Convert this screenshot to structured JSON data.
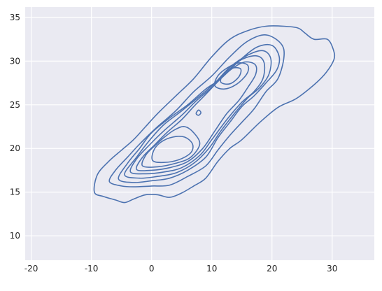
{
  "chart_data": {
    "type": "kde-contour",
    "title": "",
    "xlabel": "",
    "ylabel": "",
    "xlim": [
      -21,
      37
    ],
    "ylim": [
      7.2,
      36.2
    ],
    "x_ticks": [
      -20,
      -10,
      0,
      10,
      20,
      30
    ],
    "y_ticks": [
      10,
      15,
      20,
      25,
      30,
      35
    ],
    "grid": true,
    "colors": {
      "background": "#EAEAF2",
      "grid": "#FFFFFF",
      "line": "#4C72B0",
      "tick_text": "#262626"
    },
    "contours": [
      {
        "level": 1,
        "points": [
          [
            -9.5,
            15.0
          ],
          [
            -8.0,
            14.5
          ],
          [
            -6.0,
            14.1
          ],
          [
            -4.5,
            13.8
          ],
          [
            -3.0,
            14.2
          ],
          [
            -1.0,
            14.7
          ],
          [
            1.0,
            14.7
          ],
          [
            3.0,
            14.4
          ],
          [
            5.0,
            14.9
          ],
          [
            7.0,
            15.7
          ],
          [
            9.0,
            16.6
          ],
          [
            11.0,
            18.5
          ],
          [
            13.0,
            20.0
          ],
          [
            15.0,
            21.0
          ],
          [
            18.0,
            23.0
          ],
          [
            21.0,
            24.7
          ],
          [
            24.0,
            25.7
          ],
          [
            27.0,
            27.3
          ],
          [
            29.0,
            28.7
          ],
          [
            30.3,
            30.2
          ],
          [
            30.2,
            31.3
          ],
          [
            29.2,
            32.5
          ],
          [
            27.0,
            32.5
          ],
          [
            25.5,
            33.2
          ],
          [
            24.3,
            33.8
          ],
          [
            22.0,
            34.0
          ],
          [
            19.0,
            34.0
          ],
          [
            16.0,
            33.5
          ],
          [
            13.0,
            32.5
          ],
          [
            10.0,
            30.5
          ],
          [
            7.0,
            28.0
          ],
          [
            4.0,
            26.0
          ],
          [
            1.0,
            24.0
          ],
          [
            -1.0,
            22.5
          ],
          [
            -3.0,
            21.0
          ],
          [
            -5.0,
            19.8
          ],
          [
            -7.0,
            18.6
          ],
          [
            -9.0,
            17.0
          ],
          [
            -9.5,
            15.0
          ]
        ]
      },
      {
        "level": 2,
        "points": [
          [
            -7.0,
            16.2
          ],
          [
            -5.0,
            15.7
          ],
          [
            -3.0,
            15.6
          ],
          [
            0.0,
            15.7
          ],
          [
            3.0,
            15.8
          ],
          [
            6.0,
            16.8
          ],
          [
            9.0,
            18.0
          ],
          [
            11.0,
            19.8
          ],
          [
            13.0,
            21.5
          ],
          [
            15.0,
            23.0
          ],
          [
            17.0,
            24.5
          ],
          [
            19.0,
            26.5
          ],
          [
            21.0,
            28.0
          ],
          [
            22.0,
            30.5
          ],
          [
            21.5,
            32.0
          ],
          [
            19.0,
            33.0
          ],
          [
            16.0,
            32.3
          ],
          [
            13.0,
            30.5
          ],
          [
            10.0,
            28.3
          ],
          [
            7.0,
            26.5
          ],
          [
            4.0,
            24.3
          ],
          [
            1.0,
            22.5
          ],
          [
            -2.0,
            20.5
          ],
          [
            -4.0,
            19.0
          ],
          [
            -6.0,
            17.5
          ],
          [
            -7.0,
            16.2
          ]
        ]
      },
      {
        "level": 3,
        "points": [
          [
            -5.5,
            16.5
          ],
          [
            -3.0,
            16.1
          ],
          [
            0.0,
            16.3
          ],
          [
            3.0,
            16.6
          ],
          [
            6.0,
            17.5
          ],
          [
            9.0,
            19.0
          ],
          [
            11.0,
            21.2
          ],
          [
            13.0,
            23.0
          ],
          [
            15.0,
            24.8
          ],
          [
            17.0,
            26.0
          ],
          [
            19.0,
            27.5
          ],
          [
            20.8,
            29.0
          ],
          [
            21.2,
            30.5
          ],
          [
            20.0,
            31.8
          ],
          [
            17.5,
            31.6
          ],
          [
            14.5,
            30.0
          ],
          [
            11.5,
            28.0
          ],
          [
            9.0,
            26.8
          ],
          [
            6.0,
            25.0
          ],
          [
            3.0,
            23.5
          ],
          [
            0.0,
            21.8
          ],
          [
            -2.0,
            20.0
          ],
          [
            -4.0,
            18.3
          ],
          [
            -5.5,
            16.5
          ]
        ]
      },
      {
        "level": 4,
        "points": [
          [
            -4.5,
            17.0
          ],
          [
            -2.0,
            16.6
          ],
          [
            1.0,
            16.8
          ],
          [
            4.0,
            17.2
          ],
          [
            7.0,
            18.3
          ],
          [
            9.5,
            20.0
          ],
          [
            11.5,
            22.0
          ],
          [
            14.0,
            24.2
          ],
          [
            16.0,
            25.8
          ],
          [
            18.0,
            27.0
          ],
          [
            19.5,
            28.5
          ],
          [
            19.8,
            30.3
          ],
          [
            18.5,
            31.2
          ],
          [
            16.0,
            30.7
          ],
          [
            13.0,
            29.3
          ],
          [
            10.5,
            27.5
          ],
          [
            8.0,
            26.0
          ],
          [
            5.0,
            24.3
          ],
          [
            2.0,
            22.7
          ],
          [
            -0.5,
            20.8
          ],
          [
            -2.5,
            19.0
          ],
          [
            -4.5,
            17.0
          ]
        ]
      },
      {
        "level": 5,
        "points": [
          [
            -3.5,
            17.3
          ],
          [
            -1.0,
            17.1
          ],
          [
            2.0,
            17.3
          ],
          [
            5.0,
            17.8
          ],
          [
            8.0,
            19.2
          ],
          [
            10.0,
            21.0
          ],
          [
            12.5,
            23.3
          ],
          [
            15.0,
            25.3
          ],
          [
            17.0,
            26.5
          ],
          [
            18.5,
            28.0
          ],
          [
            18.7,
            29.8
          ],
          [
            17.5,
            30.6
          ],
          [
            15.0,
            30.2
          ],
          [
            12.5,
            28.8
          ],
          [
            10.0,
            27.0
          ],
          [
            7.5,
            25.5
          ],
          [
            5.0,
            23.8
          ],
          [
            2.0,
            22.0
          ],
          [
            -0.5,
            20.3
          ],
          [
            -2.5,
            18.8
          ],
          [
            -3.5,
            17.3
          ]
        ]
      },
      {
        "level": 6,
        "points": [
          [
            -2.5,
            17.6
          ],
          [
            0.0,
            17.5
          ],
          [
            3.0,
            17.8
          ],
          [
            6.0,
            18.5
          ],
          [
            8.5,
            20.0
          ],
          [
            10.5,
            22.0
          ],
          [
            12.5,
            24.0
          ],
          [
            14.5,
            25.5
          ],
          [
            16.0,
            27.0
          ],
          [
            17.3,
            28.5
          ],
          [
            17.2,
            29.6
          ],
          [
            15.5,
            29.9
          ],
          [
            13.5,
            29.2
          ],
          [
            11.5,
            28.0
          ],
          [
            9.0,
            26.2
          ],
          [
            7.0,
            24.8
          ],
          [
            5.0,
            23.3
          ],
          [
            2.5,
            21.8
          ],
          [
            0.5,
            20.4
          ],
          [
            -1.5,
            19.0
          ],
          [
            -2.5,
            17.6
          ]
        ]
      },
      {
        "level": 7,
        "points": [
          [
            -1.5,
            18.0
          ],
          [
            1.0,
            17.9
          ],
          [
            4.0,
            18.3
          ],
          [
            6.5,
            19.0
          ],
          [
            8.0,
            20.5
          ],
          [
            7.0,
            21.8
          ],
          [
            5.5,
            22.5
          ],
          [
            4.0,
            22.2
          ],
          [
            2.5,
            21.5
          ],
          [
            0.5,
            20.3
          ],
          [
            -1.0,
            19.2
          ],
          [
            -1.5,
            18.0
          ]
        ]
      },
      {
        "level": 8,
        "points": [
          [
            0.2,
            18.6
          ],
          [
            2.0,
            18.4
          ],
          [
            4.5,
            18.7
          ],
          [
            6.5,
            19.5
          ],
          [
            6.8,
            20.5
          ],
          [
            5.5,
            21.3
          ],
          [
            3.5,
            21.3
          ],
          [
            1.5,
            20.7
          ],
          [
            0.3,
            19.7
          ],
          [
            0.2,
            18.6
          ]
        ]
      },
      {
        "level": 7,
        "points": [
          [
            10.5,
            27.2
          ],
          [
            12.0,
            26.8
          ],
          [
            14.0,
            27.3
          ],
          [
            15.8,
            28.5
          ],
          [
            16.0,
            29.5
          ],
          [
            14.5,
            29.8
          ],
          [
            12.5,
            29.2
          ],
          [
            11.0,
            28.3
          ],
          [
            10.5,
            27.2
          ]
        ]
      },
      {
        "level": 8,
        "points": [
          [
            11.5,
            27.6
          ],
          [
            13.0,
            27.4
          ],
          [
            14.5,
            28.2
          ],
          [
            14.8,
            29.1
          ],
          [
            13.5,
            29.2
          ],
          [
            12.0,
            28.6
          ],
          [
            11.5,
            27.6
          ]
        ]
      },
      {
        "level": 9,
        "points": [
          [
            7.4,
            24.0
          ],
          [
            7.8,
            23.8
          ],
          [
            8.2,
            24.1
          ],
          [
            7.8,
            24.4
          ],
          [
            7.4,
            24.0
          ]
        ]
      }
    ]
  }
}
